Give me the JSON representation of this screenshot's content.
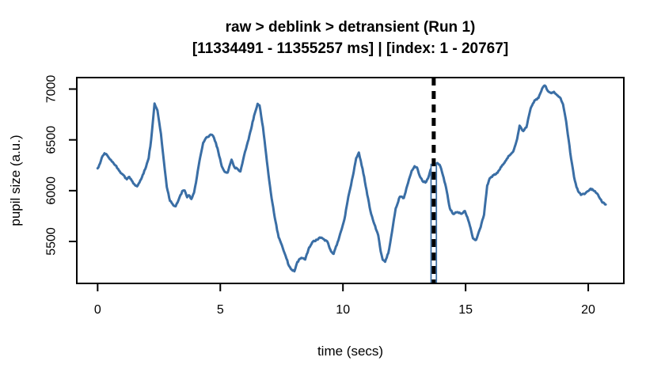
{
  "chart_data": {
    "type": "line",
    "title": "raw > deblink > detransient (Run 1)",
    "subtitle": "[11334491 - 11355257 ms] | [index: 1 - 20767]",
    "xlabel": "time (secs)",
    "ylabel": "pupil size (a.u.)",
    "x_ticks": [
      0,
      5,
      10,
      15,
      20
    ],
    "y_ticks": [
      5500,
      6000,
      6500,
      7000
    ],
    "xlim": [
      -0.85,
      21.45
    ],
    "ylim": [
      5087,
      7113
    ],
    "grid": false,
    "legend": null,
    "axis_color": "#000000",
    "background_color": "#ffffff",
    "noise_amplitude": 7,
    "cursor": {
      "x": 13.7,
      "style": "dashed",
      "line_color": "#000000",
      "gap_color": "#ffffff",
      "underlay_color": "#3A6EA5",
      "underlay_top_value": 6266
    },
    "series": [
      {
        "name": "pupil size",
        "color": "#3A6EA5",
        "points": [
          [
            0.0,
            6220
          ],
          [
            0.1,
            6268
          ],
          [
            0.2,
            6340
          ],
          [
            0.28,
            6368
          ],
          [
            0.38,
            6352
          ],
          [
            0.5,
            6310
          ],
          [
            0.62,
            6280
          ],
          [
            0.72,
            6250
          ],
          [
            0.87,
            6198
          ],
          [
            1.03,
            6158
          ],
          [
            1.19,
            6112
          ],
          [
            1.29,
            6136
          ],
          [
            1.45,
            6073
          ],
          [
            1.61,
            6042
          ],
          [
            1.77,
            6112
          ],
          [
            1.94,
            6213
          ],
          [
            2.08,
            6320
          ],
          [
            2.18,
            6500
          ],
          [
            2.32,
            6858
          ],
          [
            2.44,
            6790
          ],
          [
            2.58,
            6560
          ],
          [
            2.7,
            6290
          ],
          [
            2.82,
            6035
          ],
          [
            2.95,
            5900
          ],
          [
            3.08,
            5858
          ],
          [
            3.18,
            5846
          ],
          [
            3.3,
            5910
          ],
          [
            3.45,
            5996
          ],
          [
            3.55,
            6002
          ],
          [
            3.65,
            5935
          ],
          [
            3.72,
            5955
          ],
          [
            3.82,
            5918
          ],
          [
            3.93,
            5980
          ],
          [
            4.05,
            6140
          ],
          [
            4.18,
            6330
          ],
          [
            4.3,
            6470
          ],
          [
            4.42,
            6520
          ],
          [
            4.52,
            6530
          ],
          [
            4.6,
            6552
          ],
          [
            4.7,
            6540
          ],
          [
            4.82,
            6470
          ],
          [
            4.92,
            6380
          ],
          [
            5.06,
            6240
          ],
          [
            5.18,
            6186
          ],
          [
            5.3,
            6178
          ],
          [
            5.46,
            6305
          ],
          [
            5.58,
            6230
          ],
          [
            5.72,
            6210
          ],
          [
            5.82,
            6190
          ],
          [
            5.97,
            6345
          ],
          [
            6.12,
            6480
          ],
          [
            6.25,
            6600
          ],
          [
            6.38,
            6740
          ],
          [
            6.52,
            6855
          ],
          [
            6.6,
            6840
          ],
          [
            6.74,
            6624
          ],
          [
            6.9,
            6290
          ],
          [
            7.06,
            5981
          ],
          [
            7.22,
            5733
          ],
          [
            7.38,
            5540
          ],
          [
            7.54,
            5440
          ],
          [
            7.66,
            5360
          ],
          [
            7.8,
            5260
          ],
          [
            7.92,
            5220
          ],
          [
            8.02,
            5206
          ],
          [
            8.14,
            5299
          ],
          [
            8.3,
            5338
          ],
          [
            8.46,
            5322
          ],
          [
            8.62,
            5440
          ],
          [
            8.78,
            5500
          ],
          [
            8.94,
            5516
          ],
          [
            9.06,
            5540
          ],
          [
            9.2,
            5524
          ],
          [
            9.36,
            5500
          ],
          [
            9.52,
            5400
          ],
          [
            9.62,
            5378
          ],
          [
            9.78,
            5492
          ],
          [
            9.92,
            5600
          ],
          [
            10.06,
            5720
          ],
          [
            10.22,
            5940
          ],
          [
            10.4,
            6140
          ],
          [
            10.54,
            6320
          ],
          [
            10.65,
            6375
          ],
          [
            10.8,
            6215
          ],
          [
            10.96,
            6005
          ],
          [
            11.12,
            5800
          ],
          [
            11.28,
            5670
          ],
          [
            11.44,
            5560
          ],
          [
            11.54,
            5400
          ],
          [
            11.62,
            5320
          ],
          [
            11.72,
            5300
          ],
          [
            11.85,
            5385
          ],
          [
            12.0,
            5595
          ],
          [
            12.15,
            5825
          ],
          [
            12.32,
            5940
          ],
          [
            12.48,
            5928
          ],
          [
            12.62,
            6050
          ],
          [
            12.8,
            6195
          ],
          [
            12.92,
            6240
          ],
          [
            13.02,
            6228
          ],
          [
            13.12,
            6150
          ],
          [
            13.24,
            6095
          ],
          [
            13.36,
            6080
          ],
          [
            13.47,
            6122
          ],
          [
            13.57,
            6205
          ],
          [
            13.67,
            6250
          ],
          [
            13.76,
            6266
          ],
          [
            13.85,
            6272
          ],
          [
            13.94,
            6255
          ],
          [
            14.04,
            6180
          ],
          [
            14.2,
            6035
          ],
          [
            14.36,
            5825
          ],
          [
            14.49,
            5772
          ],
          [
            14.65,
            5788
          ],
          [
            14.82,
            5772
          ],
          [
            14.97,
            5800
          ],
          [
            15.14,
            5686
          ],
          [
            15.3,
            5532
          ],
          [
            15.43,
            5516
          ],
          [
            15.58,
            5620
          ],
          [
            15.75,
            5762
          ],
          [
            15.88,
            6050
          ],
          [
            15.98,
            6120
          ],
          [
            16.14,
            6152
          ],
          [
            16.3,
            6175
          ],
          [
            16.46,
            6236
          ],
          [
            16.62,
            6290
          ],
          [
            16.78,
            6345
          ],
          [
            16.94,
            6385
          ],
          [
            17.1,
            6508
          ],
          [
            17.2,
            6640
          ],
          [
            17.35,
            6586
          ],
          [
            17.48,
            6624
          ],
          [
            17.65,
            6810
          ],
          [
            17.81,
            6888
          ],
          [
            17.97,
            6912
          ],
          [
            18.12,
            7005
          ],
          [
            18.23,
            7035
          ],
          [
            18.38,
            6974
          ],
          [
            18.46,
            6964
          ],
          [
            18.6,
            6973
          ],
          [
            18.76,
            6935
          ],
          [
            18.87,
            6910
          ],
          [
            18.97,
            6850
          ],
          [
            19.1,
            6678
          ],
          [
            19.2,
            6500
          ],
          [
            19.3,
            6315
          ],
          [
            19.42,
            6136
          ],
          [
            19.52,
            6035
          ],
          [
            19.62,
            5982
          ],
          [
            19.7,
            5958
          ],
          [
            19.85,
            5966
          ],
          [
            20.0,
            5996
          ],
          [
            20.1,
            6020
          ],
          [
            20.24,
            5996
          ],
          [
            20.4,
            5958
          ],
          [
            20.49,
            5918
          ],
          [
            20.58,
            5882
          ],
          [
            20.71,
            5864
          ]
        ]
      }
    ]
  }
}
